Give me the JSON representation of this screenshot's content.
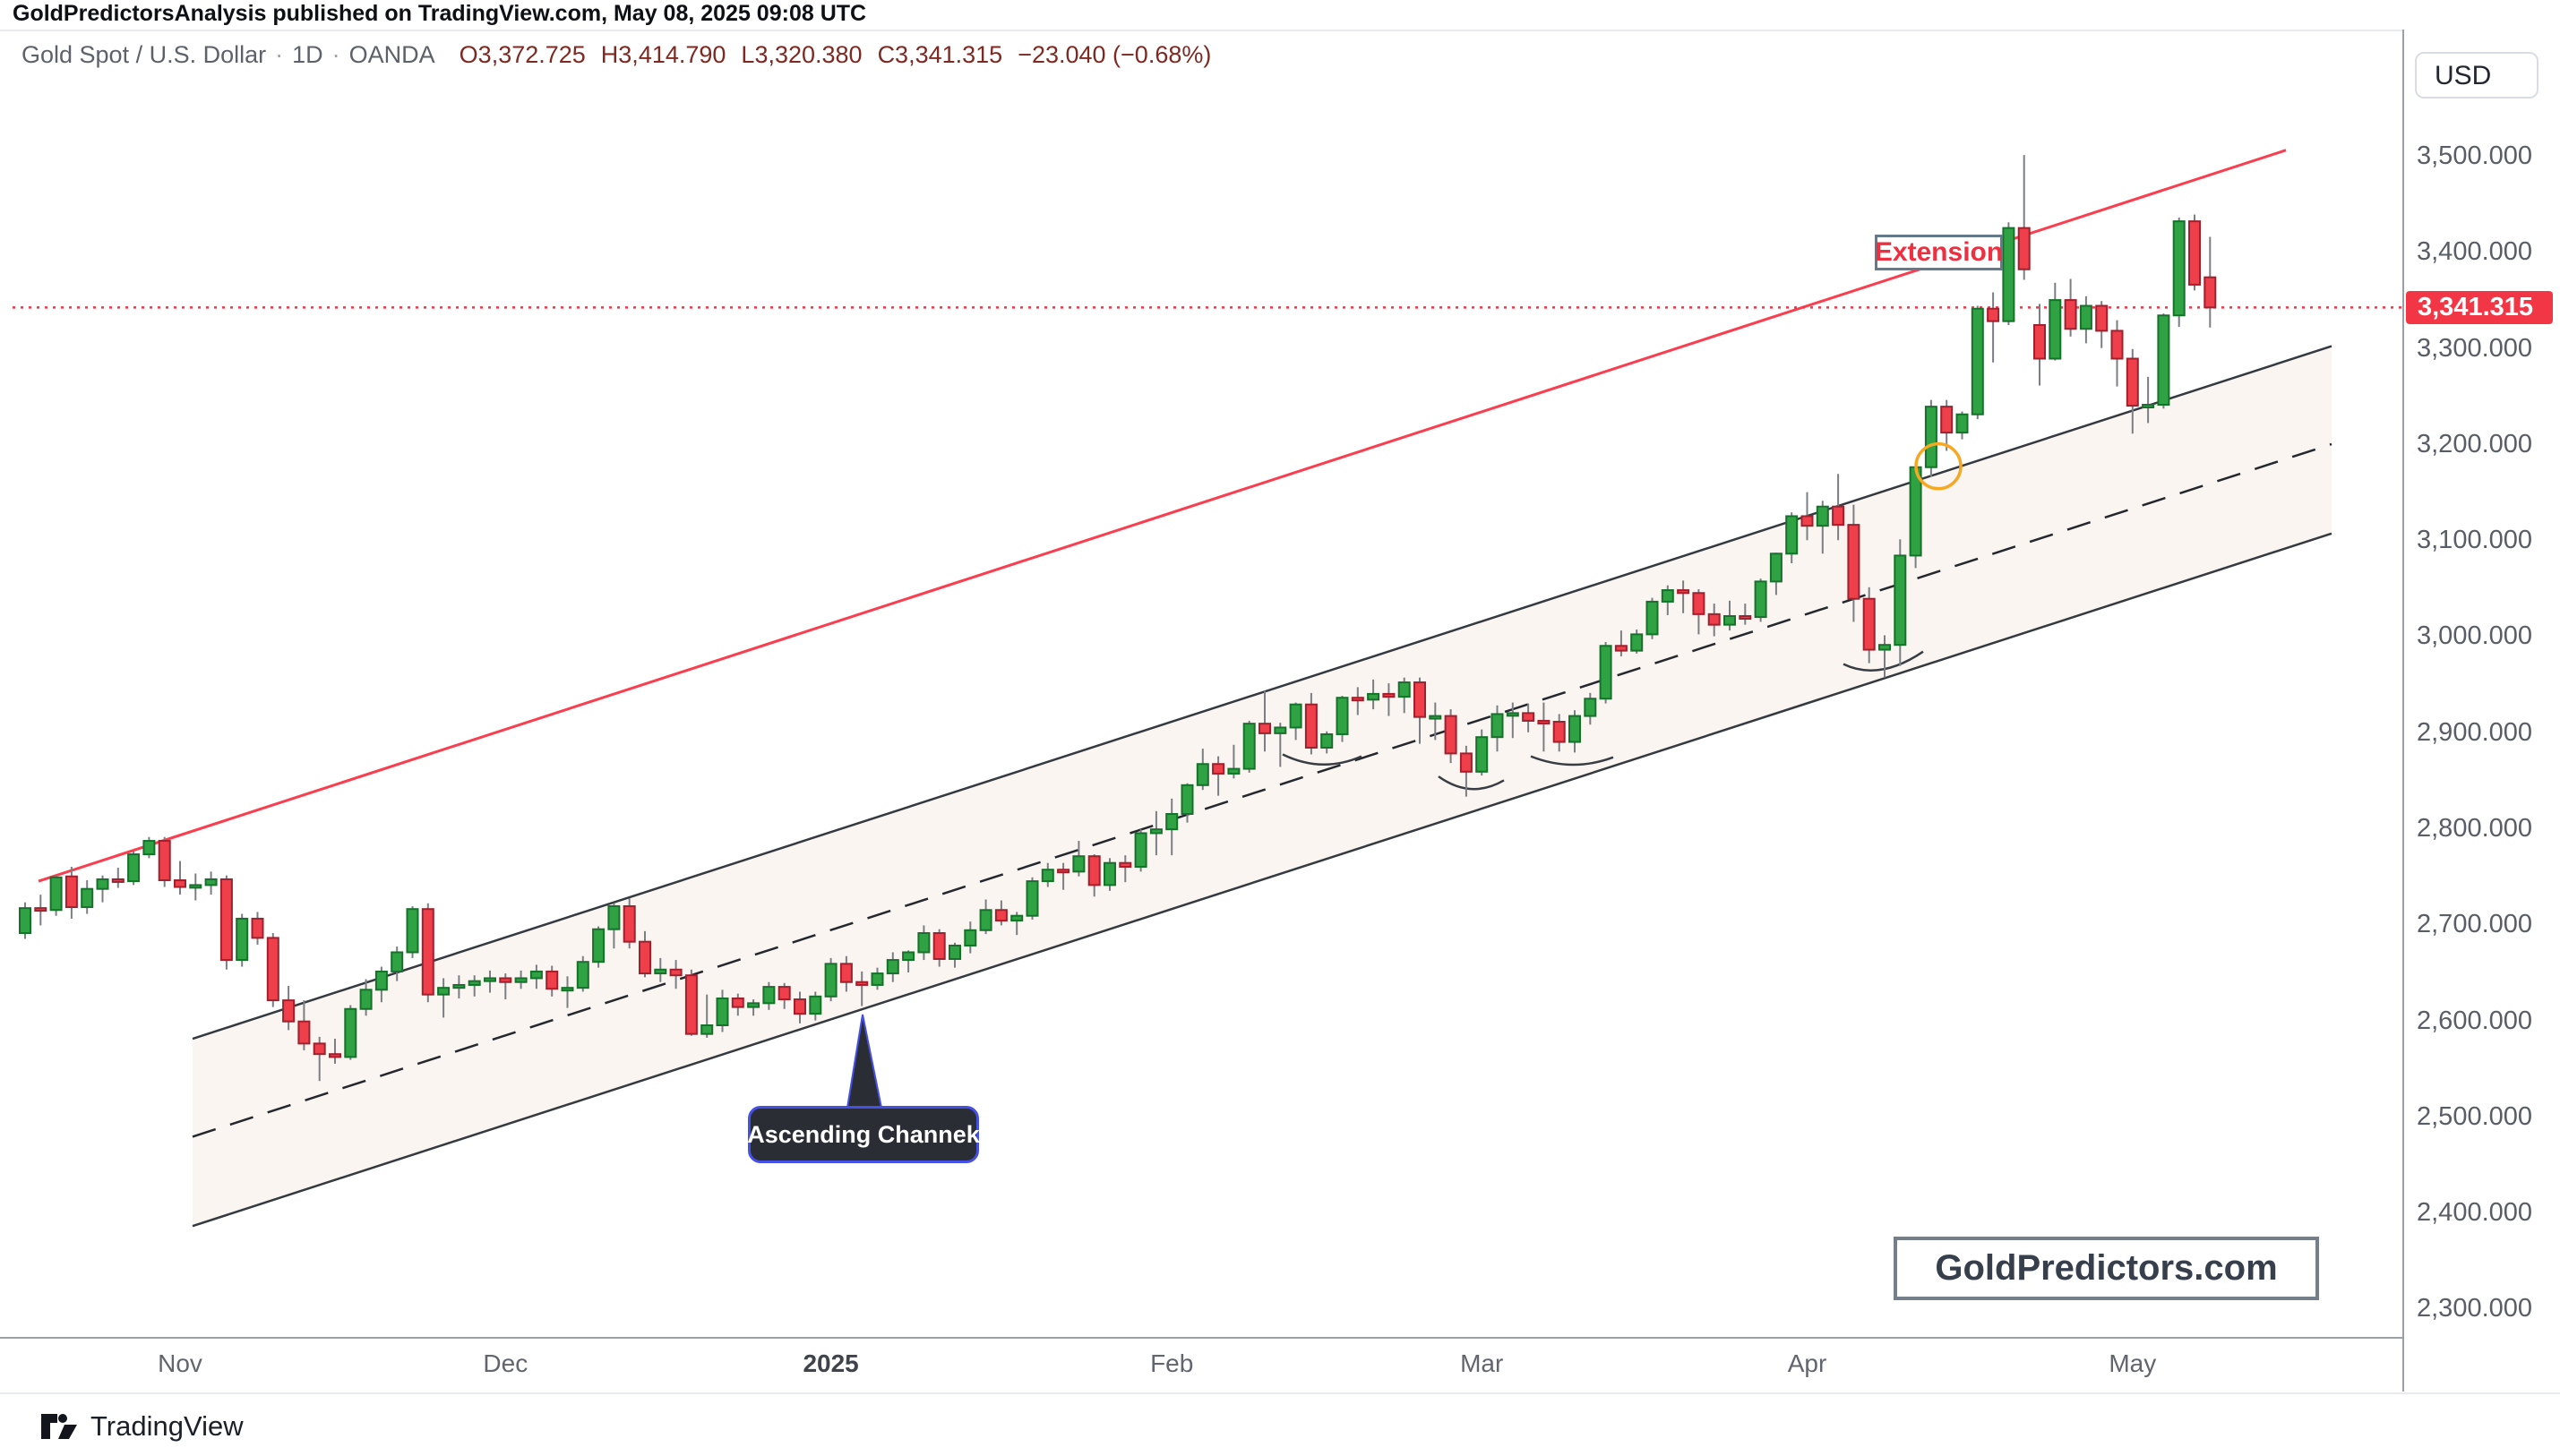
{
  "published_bar": {
    "text": "GoldPredictorsAnalysis published on TradingView.com, May 08, 2025 09:08 UTC"
  },
  "legend": {
    "symbol": "Gold Spot / U.S. Dollar",
    "sep": "·",
    "timeframe": "1D",
    "exchange": "OANDA",
    "o": "O3,372.725",
    "h": "H3,414.790",
    "l": "L3,320.380",
    "c": "C3,341.315",
    "change": "−23.040 (−0.68%)"
  },
  "axis_right": {
    "currency": "USD",
    "price_label": "3,341.315"
  },
  "annotations": {
    "extension": "Extension",
    "channel_callout": "Ascending Channek",
    "watermark": "GoldPredictors.com"
  },
  "footer": {
    "brand": "TradingView"
  },
  "colors": {
    "up": "#2fa344",
    "up_border": "#17712c",
    "down": "#ee3f4b",
    "down_border": "#a0212e",
    "wick": "#7b7f85",
    "channel_line": "#343a40",
    "channel_dash": "#24282e",
    "channel_fill": "rgba(236,218,200,0.28)",
    "trend": "#fb3d4e",
    "price_line": "#f23645",
    "arc": "#383d44",
    "circle": "#f7a823",
    "callout_bg": "#2b2d35",
    "callout_border": "#4450e6"
  },
  "chart_data": {
    "type": "candlestick",
    "title": "Gold Spot / U.S. Dollar, 1D, OANDA",
    "x0": 28,
    "dx": 17.3,
    "y_axis": {
      "min": 2269.6,
      "max": 3630.6,
      "ticks": [
        {
          "price": 3500,
          "label": "3,500.000"
        },
        {
          "price": 3400,
          "label": "3,400.000"
        },
        {
          "price": 3300,
          "label": "3,300.000"
        },
        {
          "price": 3200,
          "label": "3,200.000"
        },
        {
          "price": 3100,
          "label": "3,100.000"
        },
        {
          "price": 3000,
          "label": "3,000.000"
        },
        {
          "price": 2900,
          "label": "2,900.000"
        },
        {
          "price": 2800,
          "label": "2,800.000"
        },
        {
          "price": 2700,
          "label": "2,700.000"
        },
        {
          "price": 2600,
          "label": "2,600.000"
        },
        {
          "price": 2500,
          "label": "2,500.000"
        },
        {
          "price": 2400,
          "label": "2,400.000"
        },
        {
          "price": 2300,
          "label": "2,300.000"
        }
      ]
    },
    "x_ticks": [
      {
        "label": "Nov",
        "index": 10,
        "bold": false
      },
      {
        "label": "Dec",
        "index": 31,
        "bold": false
      },
      {
        "label": "2025",
        "index": 52,
        "bold": true
      },
      {
        "label": "Feb",
        "index": 74,
        "bold": false
      },
      {
        "label": "Mar",
        "index": 94,
        "bold": false
      },
      {
        "label": "Apr",
        "index": 115,
        "bold": false
      },
      {
        "label": "May",
        "index": 136,
        "bold": false
      }
    ],
    "price_line": {
      "price": 3341.315,
      "label": "3,341.315"
    },
    "channel": {
      "top": {
        "x1": 215,
        "p1": 2580,
        "x2": 2603,
        "p2": 3301
      },
      "middle": {
        "x1": 215,
        "p1": 2478,
        "x2": 2603,
        "p2": 3199
      },
      "bottom": {
        "x1": 215,
        "p1": 2385,
        "x2": 2603,
        "p2": 3106
      }
    },
    "trend": {
      "x1": 43,
      "p1": 2744,
      "x2": 2552,
      "p2": 3505
    },
    "arcs": [
      {
        "x1": 1432,
        "p1": 2876,
        "qx": 1476,
        "qp": 2856,
        "x2": 1520,
        "p2": 2874
      },
      {
        "x1": 1606,
        "p1": 2853,
        "qx": 1642,
        "qp": 2829,
        "x2": 1679,
        "p2": 2849
      },
      {
        "x1": 1709,
        "p1": 2874,
        "qx": 1755,
        "qp": 2857,
        "x2": 1801,
        "p2": 2873
      },
      {
        "x1": 2058,
        "p1": 2970,
        "qx": 2098,
        "qp": 2952,
        "x2": 2147,
        "p2": 2983
      }
    ],
    "circle": {
      "x": 2164,
      "price": 3176,
      "r": 25
    },
    "pointer": {
      "apex_x": 963,
      "apex_y": 1100,
      "base_x1": 946,
      "base_x2": 984,
      "base_y": 1204
    },
    "candles": [
      [
        2690,
        2722,
        2684,
        2716
      ],
      [
        2716,
        2730,
        2698,
        2714
      ],
      [
        2714,
        2750,
        2708,
        2748
      ],
      [
        2749,
        2759,
        2705,
        2717
      ],
      [
        2717,
        2745,
        2710,
        2736
      ],
      [
        2736,
        2750,
        2722,
        2746
      ],
      [
        2746,
        2758,
        2737,
        2744
      ],
      [
        2744,
        2775,
        2740,
        2772
      ],
      [
        2772,
        2790,
        2768,
        2786
      ],
      [
        2786,
        2790,
        2738,
        2745
      ],
      [
        2745,
        2765,
        2730,
        2738
      ],
      [
        2738,
        2752,
        2724,
        2740
      ],
      [
        2740,
        2754,
        2730,
        2746
      ],
      [
        2746,
        2750,
        2652,
        2662
      ],
      [
        2662,
        2710,
        2655,
        2705
      ],
      [
        2705,
        2712,
        2678,
        2685
      ],
      [
        2685,
        2690,
        2613,
        2620
      ],
      [
        2620,
        2635,
        2589,
        2598
      ],
      [
        2598,
        2620,
        2568,
        2575
      ],
      [
        2575,
        2582,
        2536,
        2564
      ],
      [
        2564,
        2580,
        2554,
        2561
      ],
      [
        2561,
        2615,
        2558,
        2611
      ],
      [
        2611,
        2642,
        2604,
        2631
      ],
      [
        2631,
        2655,
        2618,
        2650
      ],
      [
        2650,
        2676,
        2640,
        2670
      ],
      [
        2670,
        2718,
        2664,
        2715
      ],
      [
        2715,
        2721,
        2618,
        2626
      ],
      [
        2626,
        2643,
        2602,
        2633
      ],
      [
        2633,
        2646,
        2622,
        2636
      ],
      [
        2636,
        2646,
        2624,
        2640
      ],
      [
        2640,
        2651,
        2628,
        2643
      ],
      [
        2643,
        2648,
        2621,
        2639
      ],
      [
        2639,
        2651,
        2632,
        2643
      ],
      [
        2643,
        2657,
        2632,
        2650
      ],
      [
        2650,
        2656,
        2624,
        2632
      ],
      [
        2632,
        2645,
        2612,
        2633
      ],
      [
        2633,
        2666,
        2629,
        2660
      ],
      [
        2660,
        2697,
        2654,
        2694
      ],
      [
        2694,
        2721,
        2674,
        2718
      ],
      [
        2718,
        2726,
        2674,
        2681
      ],
      [
        2681,
        2692,
        2644,
        2648
      ],
      [
        2648,
        2664,
        2639,
        2652
      ],
      [
        2652,
        2662,
        2632,
        2646
      ],
      [
        2646,
        2652,
        2583,
        2585
      ],
      [
        2585,
        2626,
        2581,
        2594
      ],
      [
        2594,
        2631,
        2587,
        2622
      ],
      [
        2622,
        2627,
        2604,
        2613
      ],
      [
        2613,
        2621,
        2604,
        2617
      ],
      [
        2617,
        2639,
        2610,
        2634
      ],
      [
        2634,
        2638,
        2611,
        2621
      ],
      [
        2621,
        2629,
        2596,
        2606
      ],
      [
        2606,
        2629,
        2599,
        2624
      ],
      [
        2624,
        2664,
        2619,
        2658
      ],
      [
        2658,
        2666,
        2629,
        2639
      ],
      [
        2639,
        2650,
        2614,
        2636
      ],
      [
        2636,
        2654,
        2631,
        2648
      ],
      [
        2648,
        2670,
        2639,
        2662
      ],
      [
        2662,
        2672,
        2649,
        2670
      ],
      [
        2670,
        2698,
        2662,
        2690
      ],
      [
        2690,
        2694,
        2655,
        2663
      ],
      [
        2663,
        2680,
        2654,
        2677
      ],
      [
        2677,
        2702,
        2669,
        2693
      ],
      [
        2693,
        2725,
        2689,
        2714
      ],
      [
        2714,
        2724,
        2698,
        2703
      ],
      [
        2703,
        2712,
        2688,
        2708
      ],
      [
        2708,
        2748,
        2704,
        2744
      ],
      [
        2744,
        2763,
        2738,
        2756
      ],
      [
        2756,
        2763,
        2735,
        2754
      ],
      [
        2754,
        2786,
        2749,
        2770
      ],
      [
        2770,
        2772,
        2728,
        2740
      ],
      [
        2740,
        2768,
        2734,
        2763
      ],
      [
        2763,
        2771,
        2743,
        2759
      ],
      [
        2759,
        2798,
        2754,
        2794
      ],
      [
        2794,
        2817,
        2771,
        2798
      ],
      [
        2798,
        2830,
        2771,
        2814
      ],
      [
        2814,
        2846,
        2805,
        2844
      ],
      [
        2844,
        2882,
        2839,
        2866
      ],
      [
        2866,
        2874,
        2833,
        2856
      ],
      [
        2856,
        2886,
        2851,
        2861
      ],
      [
        2861,
        2911,
        2857,
        2908
      ],
      [
        2908,
        2942,
        2879,
        2898
      ],
      [
        2898,
        2909,
        2863,
        2904
      ],
      [
        2904,
        2930,
        2891,
        2928
      ],
      [
        2928,
        2940,
        2876,
        2883
      ],
      [
        2883,
        2900,
        2877,
        2897
      ],
      [
        2897,
        2937,
        2889,
        2935
      ],
      [
        2935,
        2946,
        2917,
        2933
      ],
      [
        2933,
        2954,
        2923,
        2939
      ],
      [
        2939,
        2950,
        2916,
        2936
      ],
      [
        2936,
        2956,
        2919,
        2951
      ],
      [
        2951,
        2956,
        2887,
        2915
      ],
      [
        2915,
        2930,
        2891,
        2916
      ],
      [
        2916,
        2923,
        2867,
        2877
      ],
      [
        2877,
        2885,
        2832,
        2858
      ],
      [
        2858,
        2902,
        2854,
        2894
      ],
      [
        2894,
        2927,
        2879,
        2918
      ],
      [
        2918,
        2930,
        2893,
        2919
      ],
      [
        2919,
        2929,
        2899,
        2911
      ],
      [
        2911,
        2930,
        2879,
        2910
      ],
      [
        2910,
        2918,
        2879,
        2889
      ],
      [
        2889,
        2922,
        2878,
        2916
      ],
      [
        2916,
        2940,
        2907,
        2934
      ],
      [
        2934,
        2993,
        2929,
        2989
      ],
      [
        2989,
        3005,
        2978,
        2984
      ],
      [
        2984,
        3006,
        2981,
        3001
      ],
      [
        3001,
        3039,
        2996,
        3035
      ],
      [
        3035,
        3052,
        3021,
        3047
      ],
      [
        3047,
        3057,
        3023,
        3044
      ],
      [
        3044,
        3048,
        3001,
        3022
      ],
      [
        3022,
        3033,
        2999,
        3011
      ],
      [
        3011,
        3036,
        3005,
        3020
      ],
      [
        3020,
        3033,
        3011,
        3019
      ],
      [
        3019,
        3059,
        3014,
        3056
      ],
      [
        3056,
        3086,
        3042,
        3085
      ],
      [
        3085,
        3128,
        3075,
        3124
      ],
      [
        3124,
        3149,
        3099,
        3114
      ],
      [
        3114,
        3140,
        3085,
        3134
      ],
      [
        3134,
        3168,
        3099,
        3115
      ],
      [
        3115,
        3136,
        3014,
        3038
      ],
      [
        3038,
        3050,
        2971,
        2985
      ],
      [
        2985,
        3000,
        2956,
        2990
      ],
      [
        2990,
        3100,
        2968,
        3083
      ],
      [
        3083,
        3176,
        3070,
        3175
      ],
      [
        3175,
        3245,
        3165,
        3238
      ],
      [
        3238,
        3245,
        3192,
        3211
      ],
      [
        3211,
        3233,
        3204,
        3230
      ],
      [
        3230,
        3343,
        3225,
        3340
      ],
      [
        3340,
        3357,
        3284,
        3327
      ],
      [
        3327,
        3430,
        3323,
        3424
      ],
      [
        3424,
        3500,
        3370,
        3381
      ],
      [
        3323,
        3345,
        3260,
        3288
      ],
      [
        3288,
        3367,
        3286,
        3349
      ],
      [
        3349,
        3371,
        3311,
        3319
      ],
      [
        3319,
        3353,
        3304,
        3343
      ],
      [
        3343,
        3348,
        3299,
        3317
      ],
      [
        3317,
        3328,
        3259,
        3288
      ],
      [
        3288,
        3298,
        3210,
        3239
      ],
      [
        3239,
        3269,
        3221,
        3240
      ],
      [
        3240,
        3335,
        3236,
        3333
      ],
      [
        3333,
        3435,
        3321,
        3431
      ],
      [
        3431,
        3438,
        3359,
        3365
      ],
      [
        3372.7,
        3414.8,
        3320.4,
        3341.3
      ]
    ]
  }
}
